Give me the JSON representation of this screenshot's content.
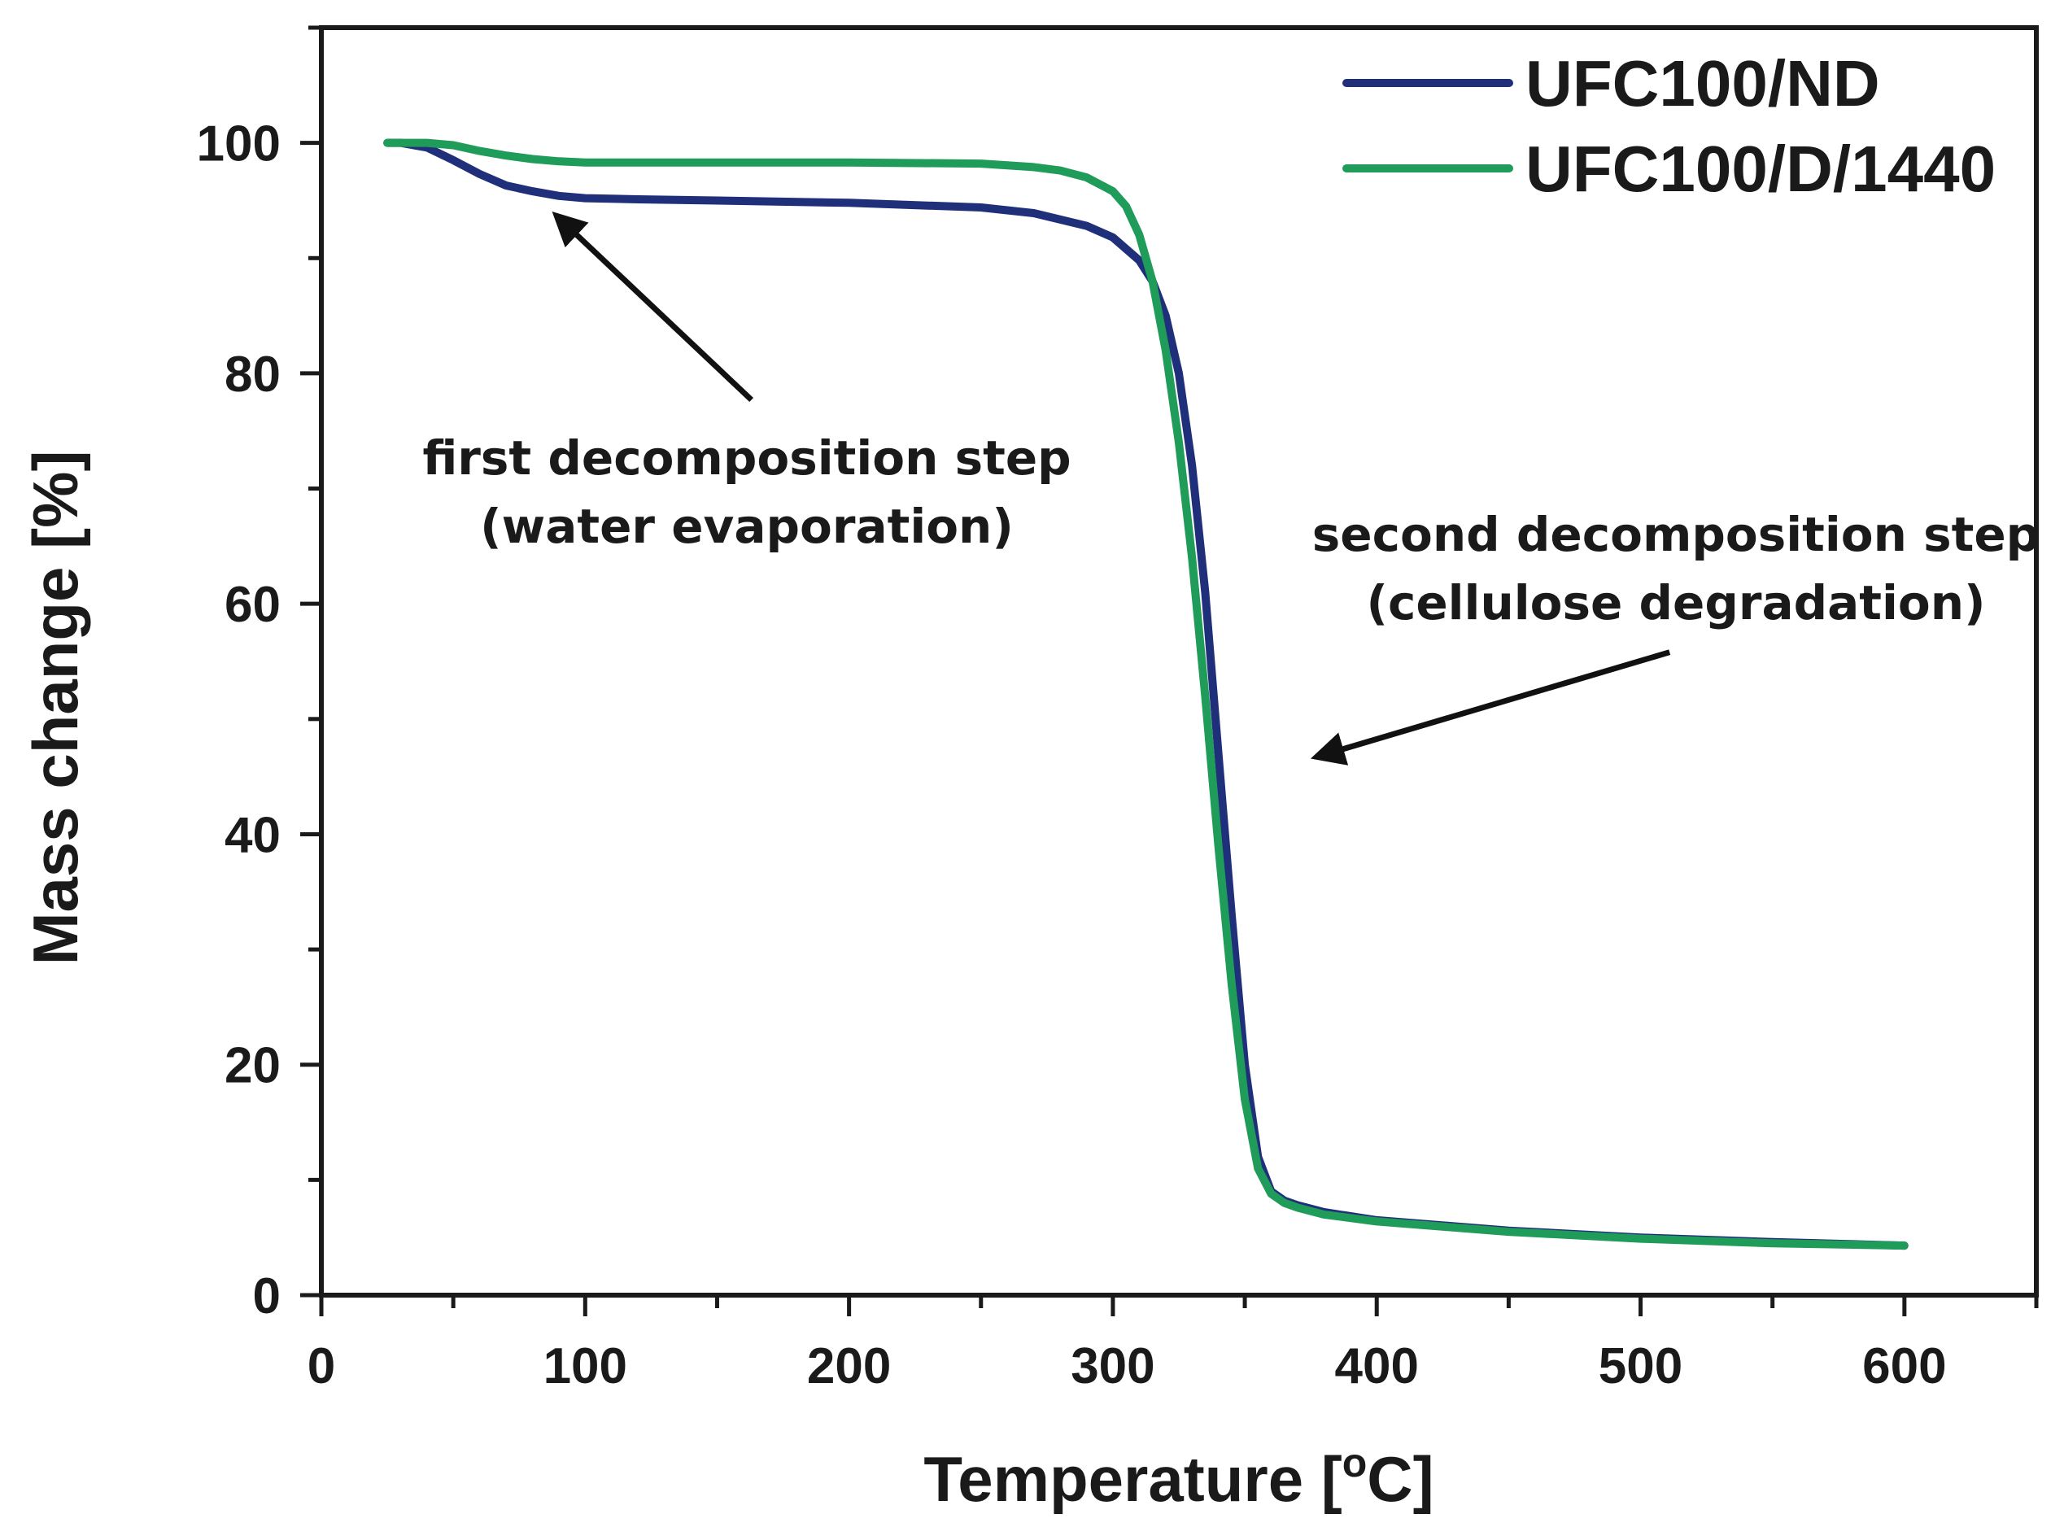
{
  "chart_data": {
    "type": "line",
    "title": "",
    "xlabel": "Temperature [°C]",
    "xlabel_main": "Temperature [",
    "xlabel_sup": "o",
    "xlabel_end": "C]",
    "ylabel": "Mass change [%]",
    "xlim": [
      0,
      650
    ],
    "ylim": [
      0,
      110
    ],
    "xticks": [
      0,
      100,
      200,
      300,
      400,
      500,
      600
    ],
    "yticks": [
      0,
      20,
      40,
      60,
      80,
      100
    ],
    "grid": false,
    "legend_position": "top-right",
    "series": [
      {
        "name": "UFC100/ND",
        "color": "#1f2f7a",
        "x": [
          25,
          30,
          40,
          50,
          60,
          70,
          80,
          90,
          100,
          120,
          150,
          200,
          250,
          270,
          290,
          300,
          310,
          315,
          320,
          325,
          330,
          335,
          340,
          345,
          350,
          355,
          360,
          365,
          370,
          380,
          400,
          450,
          500,
          550,
          600
        ],
        "y": [
          100,
          100,
          99.6,
          98.5,
          97.3,
          96.3,
          95.8,
          95.4,
          95.2,
          95.1,
          95.0,
          94.8,
          94.4,
          93.9,
          92.8,
          91.8,
          89.8,
          88.0,
          85.0,
          80.0,
          72.0,
          61.0,
          47.0,
          33.0,
          20.0,
          12.0,
          9.0,
          8.2,
          7.8,
          7.2,
          6.5,
          5.6,
          5.0,
          4.6,
          4.3
        ]
      },
      {
        "name": "UFC100/D/1440",
        "color": "#1f9b5a",
        "x": [
          25,
          30,
          40,
          50,
          60,
          70,
          80,
          90,
          100,
          120,
          150,
          200,
          250,
          270,
          280,
          290,
          300,
          305,
          310,
          315,
          320,
          325,
          330,
          335,
          340,
          345,
          350,
          355,
          360,
          365,
          370,
          380,
          400,
          450,
          500,
          550,
          600
        ],
        "y": [
          100,
          100,
          100,
          99.8,
          99.3,
          98.9,
          98.6,
          98.4,
          98.3,
          98.3,
          98.3,
          98.3,
          98.2,
          97.9,
          97.6,
          97.0,
          95.8,
          94.5,
          92.0,
          88.0,
          82.0,
          74.0,
          64.0,
          52.0,
          39.0,
          27.0,
          17.0,
          11.0,
          8.8,
          8.0,
          7.6,
          7.0,
          6.4,
          5.5,
          4.9,
          4.5,
          4.3
        ]
      }
    ],
    "annotations": [
      {
        "lines": [
          "first decomposition step",
          "(water evaporation)"
        ],
        "arrow_from": [
          163,
          77.7
        ],
        "arrow_to": [
          89,
          93.7
        ]
      },
      {
        "lines": [
          "second decomposition step",
          "(cellulose degradation)"
        ],
        "arrow_from": [
          511,
          55.8
        ],
        "arrow_to": [
          377,
          46.7
        ]
      }
    ]
  }
}
